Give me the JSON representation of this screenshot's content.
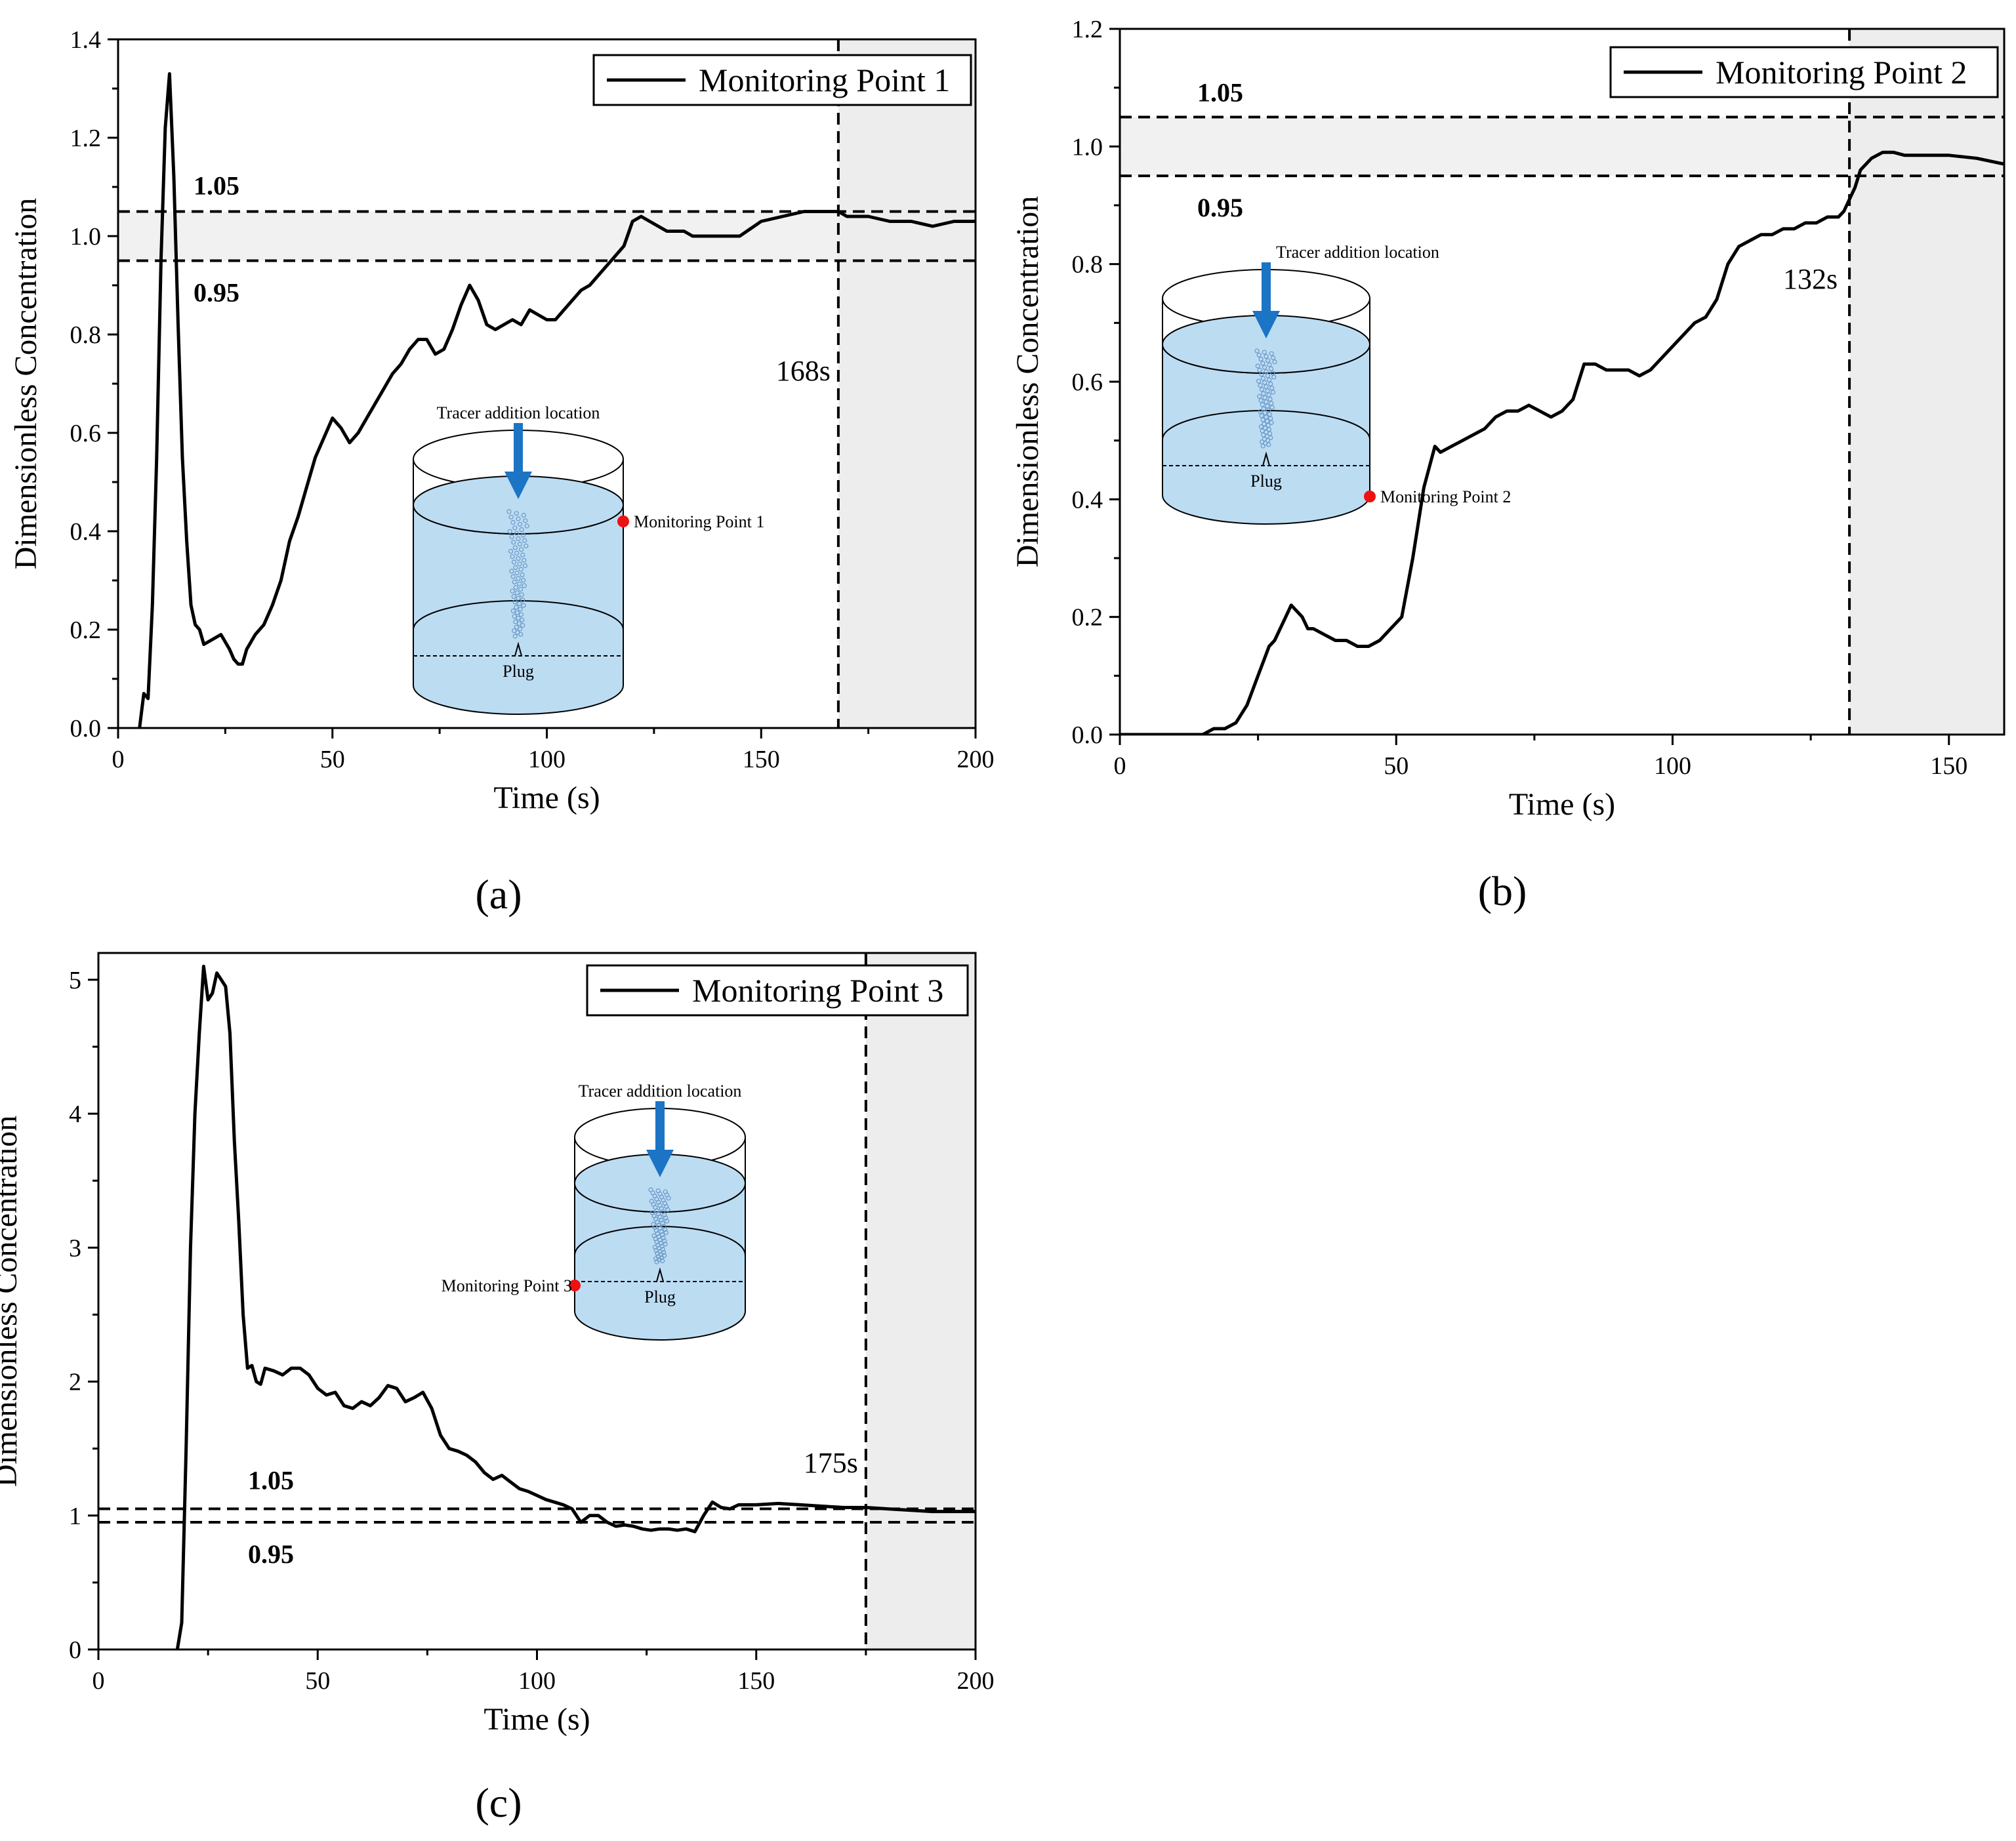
{
  "figure": {
    "panels": [
      "(a)",
      "(b)",
      "(c)"
    ]
  },
  "chart_data": [
    {
      "type": "line",
      "panel": "(a)",
      "xlabel": "Time (s)",
      "ylabel": "Dimensionless Concentration",
      "xlim": [
        0,
        200
      ],
      "ylim": [
        0,
        1.4
      ],
      "xticks": [
        0,
        50,
        100,
        150,
        200
      ],
      "yticks": [
        "0.0",
        "0.2",
        "0.4",
        "0.6",
        "0.8",
        "1.0",
        "1.2",
        "1.4"
      ],
      "legend": "Monitoring Point 1",
      "thresholds": [
        {
          "value": 1.05,
          "label": "1.05"
        },
        {
          "value": 0.95,
          "label": "0.95"
        }
      ],
      "mixing_time": {
        "value": 168,
        "label": "168s"
      },
      "inset": {
        "tracer": "Tracer addition location",
        "plug": "Plug",
        "point": "Monitoring Point 1"
      },
      "series": [
        {
          "name": "Monitoring Point 1",
          "x": [
            5,
            6,
            7,
            8,
            9,
            10,
            11,
            12,
            13,
            14,
            15,
            16,
            17,
            18,
            19,
            20,
            22,
            24,
            26,
            27,
            28,
            29,
            30,
            32,
            34,
            36,
            38,
            40,
            42,
            44,
            46,
            48,
            50,
            52,
            54,
            56,
            58,
            60,
            62,
            64,
            66,
            68,
            70,
            72,
            74,
            76,
            78,
            80,
            82,
            84,
            86,
            88,
            90,
            92,
            94,
            96,
            98,
            100,
            102,
            104,
            106,
            108,
            110,
            112,
            114,
            116,
            118,
            120,
            122,
            124,
            126,
            128,
            130,
            132,
            134,
            136,
            140,
            145,
            150,
            155,
            160,
            165,
            168,
            170,
            175,
            180,
            185,
            190,
            195,
            200
          ],
          "y": [
            0.0,
            0.07,
            0.06,
            0.25,
            0.55,
            0.95,
            1.22,
            1.33,
            1.12,
            0.82,
            0.55,
            0.38,
            0.25,
            0.21,
            0.2,
            0.17,
            0.18,
            0.19,
            0.16,
            0.14,
            0.13,
            0.13,
            0.16,
            0.19,
            0.21,
            0.25,
            0.3,
            0.38,
            0.43,
            0.49,
            0.55,
            0.59,
            0.63,
            0.61,
            0.58,
            0.6,
            0.63,
            0.66,
            0.69,
            0.72,
            0.74,
            0.77,
            0.79,
            0.79,
            0.76,
            0.77,
            0.81,
            0.86,
            0.9,
            0.87,
            0.82,
            0.81,
            0.82,
            0.83,
            0.82,
            0.85,
            0.84,
            0.83,
            0.83,
            0.85,
            0.87,
            0.89,
            0.9,
            0.92,
            0.94,
            0.96,
            0.98,
            1.03,
            1.04,
            1.03,
            1.02,
            1.01,
            1.01,
            1.01,
            1.0,
            1.0,
            1.0,
            1.0,
            1.03,
            1.04,
            1.05,
            1.05,
            1.05,
            1.04,
            1.04,
            1.03,
            1.03,
            1.02,
            1.03,
            1.03
          ]
        }
      ]
    },
    {
      "type": "line",
      "panel": "(b)",
      "xlabel": "Time (s)",
      "ylabel": "Dimensionless Concentration",
      "xlim": [
        0,
        160
      ],
      "ylim": [
        0,
        1.2
      ],
      "xticks": [
        0,
        50,
        100,
        150
      ],
      "yticks": [
        "0.0",
        "0.2",
        "0.4",
        "0.6",
        "0.8",
        "1.0",
        "1.2"
      ],
      "legend": "Monitoring Point 2",
      "thresholds": [
        {
          "value": 1.05,
          "label": "1.05"
        },
        {
          "value": 0.95,
          "label": "0.95"
        }
      ],
      "mixing_time": {
        "value": 132,
        "label": "132s"
      },
      "inset": {
        "tracer": "Tracer addition location",
        "plug": "Plug",
        "point": "Monitoring Point 2"
      },
      "series": [
        {
          "name": "Monitoring Point 2",
          "x": [
            0,
            5,
            10,
            15,
            17,
            19,
            21,
            23,
            25,
            27,
            28,
            30,
            31,
            32,
            33,
            34,
            35,
            37,
            39,
            41,
            43,
            45,
            47,
            49,
            51,
            53,
            55,
            57,
            58,
            60,
            62,
            64,
            66,
            68,
            70,
            72,
            74,
            76,
            78,
            80,
            82,
            84,
            86,
            88,
            90,
            92,
            94,
            96,
            98,
            100,
            102,
            104,
            106,
            108,
            110,
            112,
            114,
            116,
            118,
            120,
            122,
            124,
            126,
            128,
            130,
            131,
            132,
            133,
            134,
            136,
            138,
            140,
            142,
            145,
            150,
            155,
            160
          ],
          "y": [
            0.0,
            0.0,
            0.0,
            0.0,
            0.01,
            0.01,
            0.02,
            0.05,
            0.1,
            0.15,
            0.16,
            0.2,
            0.22,
            0.21,
            0.2,
            0.18,
            0.18,
            0.17,
            0.16,
            0.16,
            0.15,
            0.15,
            0.16,
            0.18,
            0.2,
            0.3,
            0.42,
            0.49,
            0.48,
            0.49,
            0.5,
            0.51,
            0.52,
            0.54,
            0.55,
            0.55,
            0.56,
            0.55,
            0.54,
            0.55,
            0.57,
            0.63,
            0.63,
            0.62,
            0.62,
            0.62,
            0.61,
            0.62,
            0.64,
            0.66,
            0.68,
            0.7,
            0.71,
            0.74,
            0.8,
            0.83,
            0.84,
            0.85,
            0.85,
            0.86,
            0.86,
            0.87,
            0.87,
            0.88,
            0.88,
            0.89,
            0.91,
            0.93,
            0.96,
            0.98,
            0.99,
            0.99,
            0.985,
            0.985,
            0.985,
            0.98,
            0.97
          ]
        }
      ]
    },
    {
      "type": "line",
      "panel": "(c)",
      "xlabel": "Time (s)",
      "ylabel": "Dimensionless Concentration",
      "xlim": [
        0,
        200
      ],
      "ylim": [
        0,
        5.2
      ],
      "xticks": [
        0,
        50,
        100,
        150,
        200
      ],
      "yticks": [
        "0",
        "1",
        "2",
        "3",
        "4",
        "5"
      ],
      "legend": "Monitoring Point 3",
      "thresholds": [
        {
          "value": 1.05,
          "label": "1.05"
        },
        {
          "value": 0.95,
          "label": "0.95"
        }
      ],
      "mixing_time": {
        "value": 175,
        "label": "175s"
      },
      "inset": {
        "tracer": "Tracer addition location",
        "plug": "Plug",
        "point": "Monitoring Point 3"
      },
      "series": [
        {
          "name": "Monitoring Point 3",
          "x": [
            18,
            19,
            20,
            21,
            22,
            23,
            24,
            25,
            26,
            27,
            28,
            29,
            30,
            31,
            32,
            33,
            34,
            35,
            36,
            37,
            38,
            40,
            42,
            44,
            46,
            48,
            50,
            52,
            54,
            56,
            58,
            60,
            62,
            64,
            66,
            68,
            70,
            72,
            74,
            76,
            78,
            80,
            82,
            84,
            86,
            88,
            90,
            92,
            94,
            96,
            98,
            100,
            102,
            104,
            106,
            108,
            110,
            112,
            114,
            116,
            118,
            120,
            122,
            124,
            126,
            128,
            130,
            132,
            134,
            136,
            138,
            140,
            142,
            144,
            146,
            150,
            155,
            160,
            165,
            170,
            175,
            180,
            185,
            190,
            195,
            200
          ],
          "y": [
            0.0,
            0.2,
            1.5,
            3.0,
            4.0,
            4.6,
            5.1,
            4.85,
            4.9,
            5.05,
            5.0,
            4.95,
            4.6,
            3.8,
            3.2,
            2.5,
            2.1,
            2.12,
            2.0,
            1.98,
            2.1,
            2.08,
            2.05,
            2.1,
            2.1,
            2.05,
            1.95,
            1.9,
            1.92,
            1.82,
            1.8,
            1.85,
            1.82,
            1.88,
            1.97,
            1.95,
            1.85,
            1.88,
            1.92,
            1.8,
            1.6,
            1.5,
            1.48,
            1.45,
            1.4,
            1.32,
            1.27,
            1.3,
            1.25,
            1.2,
            1.18,
            1.15,
            1.12,
            1.1,
            1.08,
            1.05,
            0.95,
            1.0,
            1.0,
            0.95,
            0.92,
            0.93,
            0.92,
            0.9,
            0.89,
            0.9,
            0.9,
            0.89,
            0.9,
            0.88,
            1.0,
            1.1,
            1.06,
            1.05,
            1.08,
            1.08,
            1.09,
            1.08,
            1.07,
            1.06,
            1.06,
            1.05,
            1.04,
            1.03,
            1.03,
            1.03
          ]
        }
      ]
    }
  ]
}
